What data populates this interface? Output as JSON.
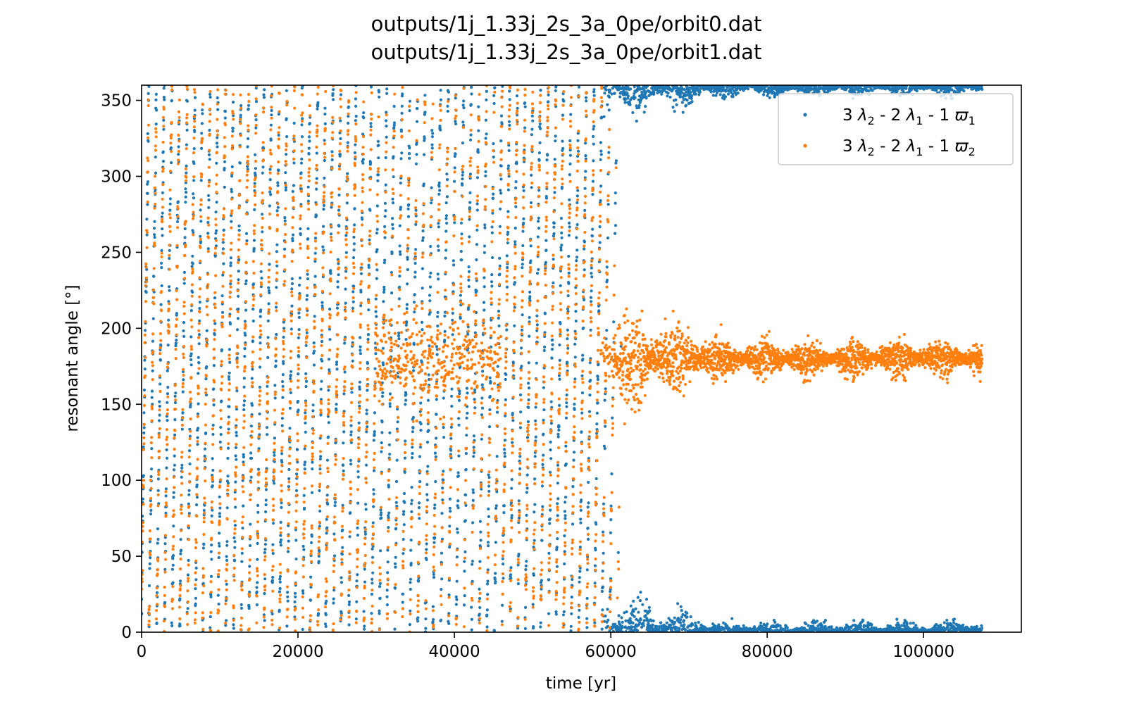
{
  "chart_data": {
    "type": "scatter",
    "title": [
      "outputs/1j_1.33j_2s_3a_0pe/orbit0.dat",
      "outputs/1j_1.33j_2s_3a_0pe/orbit1.dat"
    ],
    "xlabel": "time [yr]",
    "ylabel": "resonant angle [°]",
    "xlim": [
      0,
      112500
    ],
    "ylim": [
      0,
      360
    ],
    "xticks": [
      0,
      20000,
      40000,
      60000,
      80000,
      100000
    ],
    "yticks": [
      0,
      50,
      100,
      150,
      200,
      250,
      300,
      350
    ],
    "grid": false,
    "legend_position": "upper-right",
    "x_range": [
      0,
      107500
    ],
    "transition_time": 60000,
    "series": [
      {
        "name": "3 λ2 - 2 λ1 - 1 ϖ1",
        "color": "#1f77b4",
        "regime": "circulating 0–360 before ~60000 yr, then librating about 0/360 with amplitude ~7°",
        "libration_center": 0,
        "libration_amplitude": 7
      },
      {
        "name": "3 λ2 - 2 λ1 - 1 ϖ2",
        "color": "#ff7f0e",
        "regime": "circulating 0–360 before ~60000 yr (partial libration near 180 around 30000–45000 yr), then librating about 180 with amplitude ~12°",
        "libration_center": 180,
        "libration_amplitude": 12
      }
    ],
    "legend": [
      {
        "prefix": "3 ",
        "s1": "λ",
        "sub1": "2",
        "mid": " - 2 ",
        "s2": "λ",
        "sub2": "1",
        "mid2": " - 1 ",
        "s3": "ϖ",
        "sub3": "1"
      },
      {
        "prefix": "3 ",
        "s1": "λ",
        "sub1": "2",
        "mid": " - 2 ",
        "s2": "λ",
        "sub2": "1",
        "mid2": " - 1 ",
        "s3": "ϖ",
        "sub3": "2"
      }
    ]
  }
}
